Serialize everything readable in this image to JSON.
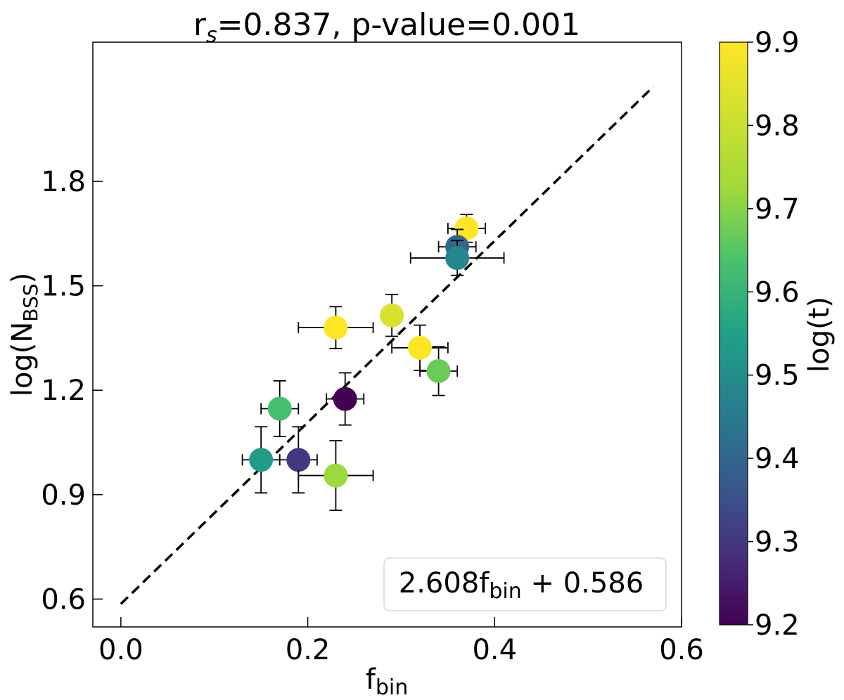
{
  "chart_data": {
    "type": "scatter",
    "title": {
      "r": "r",
      "r_sub": "s",
      "rest": "=0.837, p-value=0.001"
    },
    "xlabel": {
      "main": "f",
      "sub": "bin"
    },
    "ylabel": {
      "main": "log(N",
      "sub": "BSS",
      "close": ")"
    },
    "xlim": [
      -0.03,
      0.6
    ],
    "ylim": [
      0.52,
      2.2
    ],
    "xticks": [
      0.0,
      0.2,
      0.4,
      0.6
    ],
    "xtick_labels": [
      "0.0",
      "0.2",
      "0.4",
      "0.6"
    ],
    "yticks": [
      0.6,
      0.9,
      1.2,
      1.5,
      1.8
    ],
    "ytick_labels": [
      "0.6",
      "0.9",
      "1.2",
      "1.5",
      "1.8"
    ],
    "colorbar": {
      "label": "log(t)",
      "range": [
        9.2,
        9.9
      ],
      "ticks": [
        9.2,
        9.3,
        9.4,
        9.5,
        9.6,
        9.7,
        9.8,
        9.9
      ],
      "tick_labels": [
        "9.2",
        "9.3",
        "9.4",
        "9.5",
        "9.6",
        "9.7",
        "9.8",
        "9.9"
      ],
      "colormap": "viridis"
    },
    "points": [
      {
        "x": 0.37,
        "y": 1.665,
        "xerr": 0.02,
        "yerr": 0.04,
        "logt": 9.9
      },
      {
        "x": 0.36,
        "y": 1.612,
        "xerr": 0.02,
        "yerr": 0.05,
        "logt": 9.4
      },
      {
        "x": 0.36,
        "y": 1.58,
        "xerr": 0.05,
        "yerr": 0.05,
        "logt": 9.48
      },
      {
        "x": 0.29,
        "y": 1.415,
        "xerr": 0.01,
        "yerr": 0.06,
        "logt": 9.83
      },
      {
        "x": 0.23,
        "y": 1.38,
        "xerr": 0.04,
        "yerr": 0.06,
        "logt": 9.9
      },
      {
        "x": 0.32,
        "y": 1.322,
        "xerr": 0.03,
        "yerr": 0.065,
        "logt": 9.9
      },
      {
        "x": 0.34,
        "y": 1.255,
        "xerr": 0.02,
        "yerr": 0.07,
        "logt": 9.67
      },
      {
        "x": 0.24,
        "y": 1.175,
        "xerr": 0.02,
        "yerr": 0.075,
        "logt": 9.2
      },
      {
        "x": 0.17,
        "y": 1.147,
        "xerr": 0.02,
        "yerr": 0.08,
        "logt": 9.63
      },
      {
        "x": 0.15,
        "y": 1.0,
        "xerr": 0.02,
        "yerr": 0.095,
        "logt": 9.54
      },
      {
        "x": 0.19,
        "y": 1.0,
        "xerr": 0.02,
        "yerr": 0.095,
        "logt": 9.3
      },
      {
        "x": 0.23,
        "y": 0.955,
        "xerr": 0.04,
        "yerr": 0.1,
        "logt": 9.72
      }
    ],
    "fit_line": {
      "slope": 2.608,
      "intercept": 0.586,
      "x_range": [
        0.0,
        0.57
      ],
      "style": "dashed"
    },
    "annotation": {
      "coef": "2.608f",
      "sub": "bin",
      "rest": " + 0.586"
    }
  }
}
